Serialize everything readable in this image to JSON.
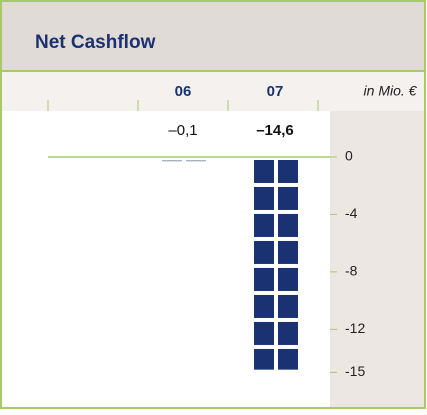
{
  "chart_data": {
    "type": "bar",
    "title": "Net Cashflow",
    "unit_label": "in Mio. €",
    "categories": [
      "06",
      "07"
    ],
    "values": [
      -0.1,
      -14.6
    ],
    "value_labels": [
      "–0,1",
      "–14,6"
    ],
    "colors": [
      "#a9b3c6",
      "#1b3272"
    ],
    "ylim": [
      3.2,
      -17.2
    ],
    "yticks": [
      0,
      -4,
      -8,
      -12,
      -15
    ]
  }
}
